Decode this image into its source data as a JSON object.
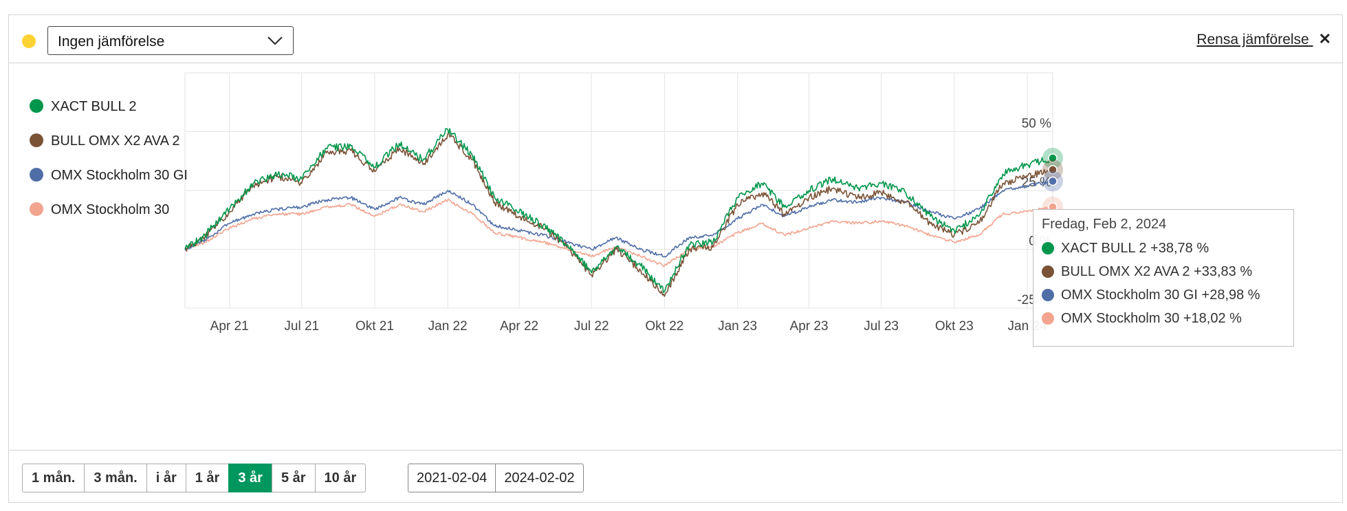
{
  "toolbar": {
    "compare_select": "Ingen jämförelse",
    "clear_label": "Rensa jämförelse",
    "clear_icon": "close-icon",
    "indicator_color": "#ffd233"
  },
  "legend": [
    {
      "name": "XACT BULL 2",
      "color": "#00964b"
    },
    {
      "name": "BULL OMX X2 AVA 2",
      "color": "#7a5236"
    },
    {
      "name": "OMX Stockholm 30 GI",
      "color": "#4f6ea8"
    },
    {
      "name": "OMX Stockholm 30",
      "color": "#f2a48f"
    }
  ],
  "chart_data": {
    "type": "line",
    "x_range": [
      "2021-02-04",
      "2024-02-02"
    ],
    "x_ticks": [
      {
        "label": "Apr 21",
        "date": "2021-04-01"
      },
      {
        "label": "Jul 21",
        "date": "2021-07-01"
      },
      {
        "label": "Okt 21",
        "date": "2021-10-01"
      },
      {
        "label": "Jan 22",
        "date": "2022-01-01"
      },
      {
        "label": "Apr 22",
        "date": "2022-04-01"
      },
      {
        "label": "Jul 22",
        "date": "2022-07-01"
      },
      {
        "label": "Okt 22",
        "date": "2022-10-01"
      },
      {
        "label": "Jan 23",
        "date": "2023-01-01"
      },
      {
        "label": "Apr 23",
        "date": "2023-04-01"
      },
      {
        "label": "Jul 23",
        "date": "2023-07-01"
      },
      {
        "label": "Okt 23",
        "date": "2023-10-01"
      },
      {
        "label": "Jan 24",
        "date": "2024-01-01"
      }
    ],
    "y_ticks": [
      {
        "label": "50 %",
        "value": 50
      },
      {
        "label": "25 %",
        "value": 25
      },
      {
        "label": "0 %",
        "value": 0
      },
      {
        "label": "-25 %",
        "value": -25
      }
    ],
    "ylim": [
      -25,
      75
    ],
    "grid": true,
    "legend_position": "left",
    "series": [
      {
        "name": "XACT BULL 2",
        "color": "#00964b",
        "points": [
          [
            "2021-02-04",
            0
          ],
          [
            "2021-03-01",
            6
          ],
          [
            "2021-04-01",
            17
          ],
          [
            "2021-05-01",
            28
          ],
          [
            "2021-06-01",
            32
          ],
          [
            "2021-07-01",
            30
          ],
          [
            "2021-08-01",
            43
          ],
          [
            "2021-09-01",
            44
          ],
          [
            "2021-10-01",
            35
          ],
          [
            "2021-11-01",
            45
          ],
          [
            "2021-12-01",
            38
          ],
          [
            "2022-01-01",
            51
          ],
          [
            "2022-02-01",
            40
          ],
          [
            "2022-03-01",
            22
          ],
          [
            "2022-04-01",
            16
          ],
          [
            "2022-05-01",
            10
          ],
          [
            "2022-06-01",
            2
          ],
          [
            "2022-07-01",
            -10
          ],
          [
            "2022-08-01",
            1
          ],
          [
            "2022-09-01",
            -7
          ],
          [
            "2022-10-01",
            -18
          ],
          [
            "2022-11-01",
            2
          ],
          [
            "2022-12-01",
            3
          ],
          [
            "2023-01-01",
            22
          ],
          [
            "2023-02-01",
            28
          ],
          [
            "2023-03-01",
            18
          ],
          [
            "2023-04-01",
            25
          ],
          [
            "2023-05-01",
            30
          ],
          [
            "2023-06-01",
            26
          ],
          [
            "2023-07-01",
            28
          ],
          [
            "2023-08-01",
            24
          ],
          [
            "2023-09-01",
            14
          ],
          [
            "2023-10-01",
            8
          ],
          [
            "2023-11-01",
            14
          ],
          [
            "2023-12-01",
            32
          ],
          [
            "2024-01-01",
            36
          ],
          [
            "2024-02-02",
            38.78
          ]
        ]
      },
      {
        "name": "BULL OMX X2 AVA 2",
        "color": "#7a5236",
        "points": [
          [
            "2021-02-04",
            0
          ],
          [
            "2021-03-01",
            5
          ],
          [
            "2021-04-01",
            16
          ],
          [
            "2021-05-01",
            27
          ],
          [
            "2021-06-01",
            31
          ],
          [
            "2021-07-01",
            28
          ],
          [
            "2021-08-01",
            41
          ],
          [
            "2021-09-01",
            42
          ],
          [
            "2021-10-01",
            33
          ],
          [
            "2021-11-01",
            43
          ],
          [
            "2021-12-01",
            36
          ],
          [
            "2022-01-01",
            49
          ],
          [
            "2022-02-01",
            38
          ],
          [
            "2022-03-01",
            20
          ],
          [
            "2022-04-01",
            14
          ],
          [
            "2022-05-01",
            9
          ],
          [
            "2022-06-01",
            1
          ],
          [
            "2022-07-01",
            -11
          ],
          [
            "2022-08-01",
            0
          ],
          [
            "2022-09-01",
            -9
          ],
          [
            "2022-10-01",
            -20
          ],
          [
            "2022-11-01",
            0
          ],
          [
            "2022-12-01",
            1
          ],
          [
            "2023-01-01",
            19
          ],
          [
            "2023-02-01",
            24
          ],
          [
            "2023-03-01",
            15
          ],
          [
            "2023-04-01",
            22
          ],
          [
            "2023-05-01",
            26
          ],
          [
            "2023-06-01",
            22
          ],
          [
            "2023-07-01",
            24
          ],
          [
            "2023-08-01",
            20
          ],
          [
            "2023-09-01",
            11
          ],
          [
            "2023-10-01",
            6
          ],
          [
            "2023-11-01",
            11
          ],
          [
            "2023-12-01",
            28
          ],
          [
            "2024-01-01",
            31
          ],
          [
            "2024-02-02",
            33.83
          ]
        ]
      },
      {
        "name": "OMX Stockholm 30 GI",
        "color": "#4f6ea8",
        "points": [
          [
            "2021-02-04",
            0
          ],
          [
            "2021-03-01",
            4
          ],
          [
            "2021-04-01",
            11
          ],
          [
            "2021-05-01",
            15
          ],
          [
            "2021-06-01",
            17
          ],
          [
            "2021-07-01",
            18
          ],
          [
            "2021-08-01",
            21
          ],
          [
            "2021-09-01",
            22
          ],
          [
            "2021-10-01",
            17
          ],
          [
            "2021-11-01",
            22
          ],
          [
            "2021-12-01",
            19
          ],
          [
            "2022-01-01",
            25
          ],
          [
            "2022-02-01",
            19
          ],
          [
            "2022-03-01",
            10
          ],
          [
            "2022-04-01",
            8
          ],
          [
            "2022-05-01",
            6
          ],
          [
            "2022-06-01",
            3
          ],
          [
            "2022-07-01",
            0
          ],
          [
            "2022-08-01",
            5
          ],
          [
            "2022-09-01",
            0
          ],
          [
            "2022-10-01",
            -3
          ],
          [
            "2022-11-01",
            5
          ],
          [
            "2022-12-01",
            6
          ],
          [
            "2023-01-01",
            13
          ],
          [
            "2023-02-01",
            19
          ],
          [
            "2023-03-01",
            14
          ],
          [
            "2023-04-01",
            18
          ],
          [
            "2023-05-01",
            21
          ],
          [
            "2023-06-01",
            20
          ],
          [
            "2023-07-01",
            22
          ],
          [
            "2023-08-01",
            20
          ],
          [
            "2023-09-01",
            16
          ],
          [
            "2023-10-01",
            13
          ],
          [
            "2023-11-01",
            17
          ],
          [
            "2023-12-01",
            25
          ],
          [
            "2024-01-01",
            27
          ],
          [
            "2024-02-02",
            28.98
          ]
        ]
      },
      {
        "name": "OMX Stockholm 30",
        "color": "#f2a48f",
        "points": [
          [
            "2021-02-04",
            0
          ],
          [
            "2021-03-01",
            3
          ],
          [
            "2021-04-01",
            9
          ],
          [
            "2021-05-01",
            13
          ],
          [
            "2021-06-01",
            15
          ],
          [
            "2021-07-01",
            15
          ],
          [
            "2021-08-01",
            18
          ],
          [
            "2021-09-01",
            19
          ],
          [
            "2021-10-01",
            14
          ],
          [
            "2021-11-01",
            19
          ],
          [
            "2021-12-01",
            16
          ],
          [
            "2022-01-01",
            21
          ],
          [
            "2022-02-01",
            15
          ],
          [
            "2022-03-01",
            7
          ],
          [
            "2022-04-01",
            5
          ],
          [
            "2022-05-01",
            3
          ],
          [
            "2022-06-01",
            0
          ],
          [
            "2022-07-01",
            -3
          ],
          [
            "2022-08-01",
            1
          ],
          [
            "2022-09-01",
            -3
          ],
          [
            "2022-10-01",
            -7
          ],
          [
            "2022-11-01",
            0
          ],
          [
            "2022-12-01",
            1
          ],
          [
            "2023-01-01",
            7
          ],
          [
            "2023-02-01",
            11
          ],
          [
            "2023-03-01",
            6
          ],
          [
            "2023-04-01",
            9
          ],
          [
            "2023-05-01",
            12
          ],
          [
            "2023-06-01",
            11
          ],
          [
            "2023-07-01",
            12
          ],
          [
            "2023-08-01",
            10
          ],
          [
            "2023-09-01",
            6
          ],
          [
            "2023-10-01",
            3
          ],
          [
            "2023-11-01",
            6
          ],
          [
            "2023-12-01",
            15
          ],
          [
            "2024-01-01",
            16
          ],
          [
            "2024-02-02",
            18.02
          ]
        ]
      }
    ]
  },
  "tooltip": {
    "date": "Fredag, Feb 2, 2024",
    "rows": [
      {
        "text": "XACT BULL 2 +38,78 %",
        "color": "#00964b"
      },
      {
        "text": "BULL OMX X2 AVA 2 +33,83 %",
        "color": "#7a5236"
      },
      {
        "text": "OMX Stockholm 30 GI +28,98 %",
        "color": "#4f6ea8"
      },
      {
        "text": "OMX Stockholm 30 +18,02 %",
        "color": "#f2a48f"
      }
    ]
  },
  "periods": [
    {
      "label": "1 mån.",
      "active": false
    },
    {
      "label": "3 mån.",
      "active": false
    },
    {
      "label": "i år",
      "active": false
    },
    {
      "label": "1 år",
      "active": false
    },
    {
      "label": "3 år",
      "active": true
    },
    {
      "label": "5 år",
      "active": false
    },
    {
      "label": "10 år",
      "active": false
    }
  ],
  "date_range": {
    "from": "2021-02-04",
    "to": "2024-02-02"
  }
}
